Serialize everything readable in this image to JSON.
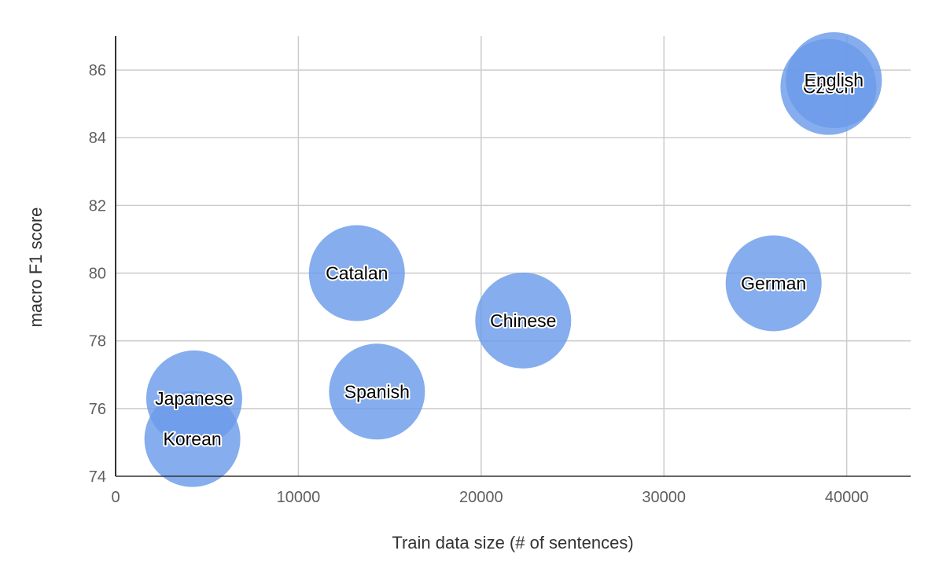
{
  "chart_data": {
    "type": "scatter",
    "subtype": "bubble",
    "xlabel": "Train data size (# of sentences)",
    "ylabel": "macro F1 score",
    "xlim": [
      0,
      43500
    ],
    "ylim": [
      74,
      87
    ],
    "x_ticks": [
      0,
      10000,
      20000,
      30000,
      40000
    ],
    "y_ticks": [
      74,
      76,
      78,
      80,
      82,
      84,
      86
    ],
    "x_tick_labels": [
      "0",
      "10000",
      "20000",
      "30000",
      "40000"
    ],
    "y_tick_labels": [
      "74",
      "76",
      "78",
      "80",
      "82",
      "84",
      "86"
    ],
    "grid": true,
    "legend": "none",
    "bubble_color": "#6b9be9",
    "points": [
      {
        "label": "Czech",
        "x": 39000,
        "y": 85.5
      },
      {
        "label": "English",
        "x": 39300,
        "y": 85.7
      },
      {
        "label": "Catalan",
        "x": 13200,
        "y": 80.0
      },
      {
        "label": "German",
        "x": 36000,
        "y": 79.7
      },
      {
        "label": "Chinese",
        "x": 22300,
        "y": 78.6
      },
      {
        "label": "Spanish",
        "x": 14300,
        "y": 76.5
      },
      {
        "label": "Japanese",
        "x": 4300,
        "y": 76.3
      },
      {
        "label": "Korean",
        "x": 4200,
        "y": 75.1
      }
    ]
  }
}
